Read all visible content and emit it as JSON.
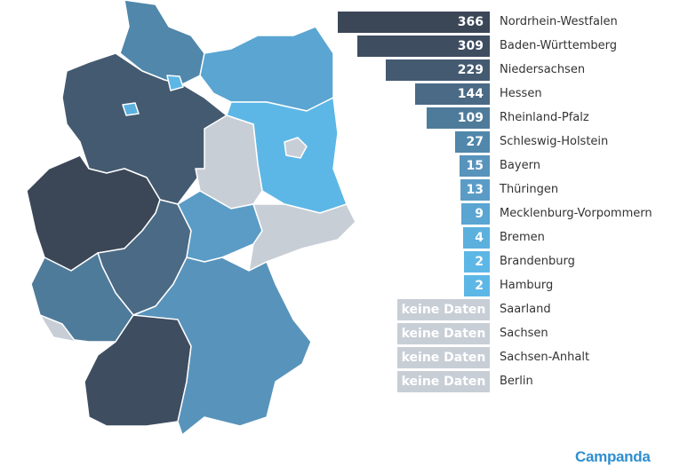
{
  "chart_data": {
    "type": "bar",
    "orientation": "horizontal",
    "categories": [
      "Nordrhein-Westfalen",
      "Baden-Württemberg",
      "Niedersachsen",
      "Hessen",
      "Rheinland-Pfalz",
      "Schleswig-Holstein",
      "Bayern",
      "Thüringen",
      "Mecklenburg-Vorpommern",
      "Bremen",
      "Brandenburg",
      "Hamburg",
      "Saarland",
      "Sachsen",
      "Sachsen-Anhalt",
      "Berlin"
    ],
    "values": [
      366,
      309,
      229,
      144,
      109,
      27,
      15,
      13,
      9,
      4,
      2,
      2,
      null,
      null,
      null,
      null
    ],
    "labels": [
      "366",
      "309",
      "229",
      "144",
      "109",
      "27",
      "15",
      "13",
      "9",
      "4",
      "2",
      "2",
      "keine Daten",
      "keine Daten",
      "keine Daten",
      "keine Daten"
    ],
    "colors": [
      "#3b4757",
      "#3e4d60",
      "#445a70",
      "#4b6a85",
      "#4f7b9b",
      "#5087ab",
      "#5893bb",
      "#5a9cc6",
      "#5aa5d2",
      "#5bb0de",
      "#5db7e6",
      "#5db7e6",
      "#c8ced6",
      "#c8ced6",
      "#c8ced6",
      "#c8ced6"
    ],
    "map": "choropleth of German states, same colors as bars",
    "no_data_color": "#c8ced6"
  },
  "brand": {
    "logo": "Campanda",
    "color": "#2f8fd0"
  }
}
